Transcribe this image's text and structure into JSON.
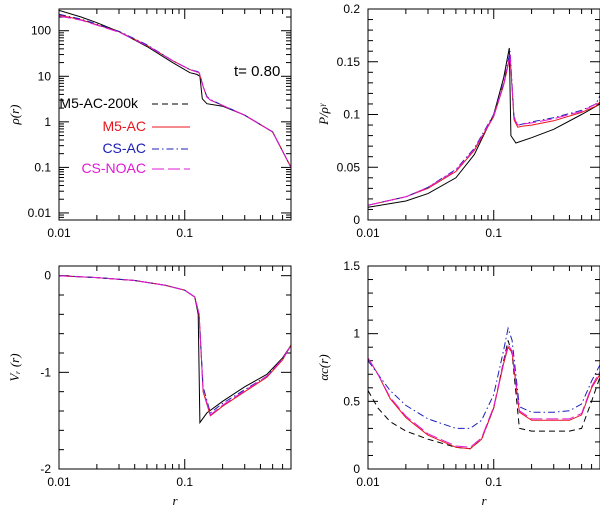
{
  "figure": {
    "annotation": "t=  0.80"
  },
  "colors": {
    "M5-AC-200k": "#000000",
    "M5-AC": "#e8141c",
    "CS-AC": "#1c20b8",
    "CS-NOAC": "#e01ad6"
  },
  "chart_data": [
    {
      "id": "rho",
      "type": "line",
      "xscale": "log",
      "yscale": "log",
      "xlim": [
        0.01,
        0.7
      ],
      "ylim": [
        0.007,
        300
      ],
      "xlabel": "",
      "ylabel": "ρ(r)",
      "xticks": [
        {
          "v": 0.01,
          "label": "0.01"
        },
        {
          "v": 0.1,
          "label": "0.1"
        }
      ],
      "yticks": [
        {
          "v": 0.01,
          "label": "0.01"
        },
        {
          "v": 0.1,
          "label": "0.1"
        },
        {
          "v": 1,
          "label": "1"
        },
        {
          "v": 10,
          "label": "10"
        },
        {
          "v": 100,
          "label": "100"
        }
      ],
      "legend_position": "left",
      "series": [
        {
          "name": "M5-AC-200k",
          "style": "solid",
          "x": [
            0.01,
            0.015,
            0.02,
            0.03,
            0.05,
            0.08,
            0.11,
            0.125,
            0.132,
            0.138,
            0.15,
            0.2,
            0.3,
            0.5,
            0.7
          ],
          "y": [
            280,
            200,
            150,
            95,
            45,
            20,
            12,
            11,
            10,
            3.2,
            2.5,
            2.2,
            1.4,
            0.6,
            0.1
          ]
        },
        {
          "name": "M5-AC",
          "style": "solid",
          "x": [
            0.01,
            0.015,
            0.02,
            0.03,
            0.05,
            0.08,
            0.11,
            0.13,
            0.14,
            0.15,
            0.16,
            0.2,
            0.3,
            0.5,
            0.7
          ],
          "y": [
            220,
            175,
            135,
            95,
            48,
            22,
            14,
            12,
            6,
            3.5,
            3,
            2.3,
            1.4,
            0.6,
            0.1
          ]
        },
        {
          "name": "CS-AC",
          "style": "dashdot",
          "x": [
            0.01,
            0.015,
            0.02,
            0.03,
            0.05,
            0.08,
            0.11,
            0.13,
            0.14,
            0.15,
            0.16,
            0.2,
            0.3,
            0.5,
            0.7
          ],
          "y": [
            230,
            180,
            140,
            97,
            49,
            22,
            14,
            12.5,
            6,
            3.6,
            3.1,
            2.3,
            1.4,
            0.6,
            0.1
          ]
        },
        {
          "name": "CS-NOAC",
          "style": "longdash",
          "x": [
            0.01,
            0.015,
            0.02,
            0.03,
            0.05,
            0.08,
            0.11,
            0.13,
            0.14,
            0.15,
            0.16,
            0.2,
            0.3,
            0.5,
            0.7
          ],
          "y": [
            210,
            170,
            132,
            93,
            47,
            22,
            14,
            12,
            6,
            3.5,
            3,
            2.3,
            1.4,
            0.6,
            0.1
          ]
        }
      ]
    },
    {
      "id": "pressure",
      "type": "line",
      "xscale": "log",
      "yscale": "linear",
      "xlim": [
        0.01,
        0.7
      ],
      "ylim": [
        0,
        0.2
      ],
      "xlabel": "",
      "ylabel": "P/ρ^γ",
      "xticks": [
        {
          "v": 0.01,
          "label": "0.01"
        },
        {
          "v": 0.1,
          "label": "0.1"
        }
      ],
      "yticks": [
        {
          "v": 0,
          "label": "0"
        },
        {
          "v": 0.05,
          "label": "0.05"
        },
        {
          "v": 0.1,
          "label": "0.1"
        },
        {
          "v": 0.15,
          "label": "0.15"
        },
        {
          "v": 0.2,
          "label": "0.2"
        }
      ],
      "series": [
        {
          "name": "M5-AC-200k",
          "style": "solid",
          "x": [
            0.01,
            0.02,
            0.03,
            0.05,
            0.07,
            0.1,
            0.12,
            0.133,
            0.137,
            0.15,
            0.2,
            0.3,
            0.5,
            0.7
          ],
          "y": [
            0.012,
            0.018,
            0.025,
            0.04,
            0.062,
            0.1,
            0.135,
            0.163,
            0.08,
            0.073,
            0.078,
            0.086,
            0.1,
            0.11
          ]
        },
        {
          "name": "M5-AC",
          "style": "solid",
          "x": [
            0.01,
            0.02,
            0.03,
            0.05,
            0.07,
            0.1,
            0.12,
            0.135,
            0.145,
            0.155,
            0.17,
            0.2,
            0.3,
            0.5,
            0.65,
            0.7
          ],
          "y": [
            0.014,
            0.022,
            0.03,
            0.046,
            0.066,
            0.098,
            0.128,
            0.155,
            0.095,
            0.088,
            0.089,
            0.09,
            0.094,
            0.102,
            0.108,
            0.112
          ]
        },
        {
          "name": "CS-AC",
          "style": "dashdot",
          "x": [
            0.01,
            0.02,
            0.03,
            0.05,
            0.07,
            0.1,
            0.12,
            0.135,
            0.145,
            0.155,
            0.17,
            0.2,
            0.3,
            0.5,
            0.65,
            0.7
          ],
          "y": [
            0.014,
            0.022,
            0.031,
            0.048,
            0.068,
            0.1,
            0.13,
            0.16,
            0.098,
            0.09,
            0.091,
            0.093,
            0.097,
            0.104,
            0.11,
            0.118
          ]
        },
        {
          "name": "CS-NOAC",
          "style": "longdash",
          "x": [
            0.01,
            0.02,
            0.03,
            0.05,
            0.07,
            0.1,
            0.12,
            0.135,
            0.145,
            0.155,
            0.17,
            0.2,
            0.3,
            0.5,
            0.65,
            0.7
          ],
          "y": [
            0.014,
            0.022,
            0.031,
            0.047,
            0.067,
            0.099,
            0.129,
            0.157,
            0.097,
            0.09,
            0.091,
            0.092,
            0.096,
            0.103,
            0.11,
            0.114
          ]
        }
      ]
    },
    {
      "id": "velocity",
      "type": "line",
      "xscale": "log",
      "yscale": "linear",
      "xlim": [
        0.01,
        0.7
      ],
      "ylim": [
        -2,
        0.1
      ],
      "xlabel": "r",
      "ylabel": "V_r (r)",
      "xticks": [
        {
          "v": 0.01,
          "label": "0.01"
        },
        {
          "v": 0.1,
          "label": "0.1"
        }
      ],
      "yticks": [
        {
          "v": -2,
          "label": "-2"
        },
        {
          "v": -1,
          "label": "-1"
        },
        {
          "v": 0,
          "label": "0"
        }
      ],
      "series": [
        {
          "name": "M5-AC-200k",
          "style": "solid",
          "x": [
            0.01,
            0.02,
            0.04,
            0.07,
            0.1,
            0.12,
            0.128,
            0.132,
            0.15,
            0.2,
            0.3,
            0.45,
            0.6,
            0.7
          ],
          "y": [
            0,
            -0.02,
            -0.05,
            -0.1,
            -0.15,
            -0.22,
            -0.4,
            -1.52,
            -1.42,
            -1.3,
            -1.15,
            -1.02,
            -0.85,
            -0.72
          ]
        },
        {
          "name": "M5-AC",
          "style": "solid",
          "x": [
            0.01,
            0.02,
            0.04,
            0.07,
            0.1,
            0.12,
            0.13,
            0.14,
            0.16,
            0.2,
            0.3,
            0.45,
            0.6,
            0.7
          ],
          "y": [
            0,
            -0.02,
            -0.05,
            -0.1,
            -0.15,
            -0.22,
            -0.4,
            -1.2,
            -1.45,
            -1.35,
            -1.2,
            -1.05,
            -0.87,
            -0.72
          ]
        },
        {
          "name": "CS-AC",
          "style": "dashdot",
          "x": [
            0.01,
            0.02,
            0.04,
            0.07,
            0.1,
            0.12,
            0.13,
            0.14,
            0.16,
            0.2,
            0.3,
            0.45,
            0.6,
            0.7
          ],
          "y": [
            0,
            -0.02,
            -0.05,
            -0.1,
            -0.15,
            -0.22,
            -0.4,
            -1.15,
            -1.42,
            -1.32,
            -1.18,
            -1.04,
            -0.86,
            -0.72
          ]
        },
        {
          "name": "CS-NOAC",
          "style": "longdash",
          "x": [
            0.01,
            0.02,
            0.04,
            0.07,
            0.1,
            0.12,
            0.13,
            0.14,
            0.16,
            0.2,
            0.3,
            0.45,
            0.6,
            0.7
          ],
          "y": [
            0,
            -0.02,
            -0.05,
            -0.1,
            -0.15,
            -0.22,
            -0.4,
            -1.18,
            -1.44,
            -1.34,
            -1.19,
            -1.04,
            -0.86,
            -0.72
          ]
        }
      ]
    },
    {
      "id": "alpha",
      "type": "line",
      "xscale": "log",
      "yscale": "linear",
      "xlim": [
        0.01,
        0.7
      ],
      "ylim": [
        0,
        1.5
      ],
      "xlabel": "r",
      "ylabel": "α_c(r)",
      "xticks": [
        {
          "v": 0.01,
          "label": "0.01"
        },
        {
          "v": 0.1,
          "label": "0.1"
        }
      ],
      "yticks": [
        {
          "v": 0,
          "label": "0"
        },
        {
          "v": 0.5,
          "label": "0.5"
        },
        {
          "v": 1,
          "label": "1"
        },
        {
          "v": 1.5,
          "label": "1.5"
        }
      ],
      "series": [
        {
          "name": "M5-AC-200k",
          "style": "dashed",
          "x": [
            0.01,
            0.012,
            0.015,
            0.02,
            0.03,
            0.05,
            0.065,
            0.08,
            0.1,
            0.12,
            0.13,
            0.14,
            0.16,
            0.2,
            0.3,
            0.4,
            0.5,
            0.6,
            0.7
          ],
          "y": [
            0.58,
            0.45,
            0.35,
            0.28,
            0.22,
            0.16,
            0.15,
            0.22,
            0.45,
            0.8,
            0.95,
            0.85,
            0.3,
            0.28,
            0.28,
            0.28,
            0.3,
            0.5,
            0.68
          ]
        },
        {
          "name": "M5-AC",
          "style": "solid",
          "x": [
            0.01,
            0.012,
            0.015,
            0.02,
            0.03,
            0.05,
            0.065,
            0.08,
            0.1,
            0.12,
            0.13,
            0.14,
            0.16,
            0.2,
            0.3,
            0.4,
            0.5,
            0.6,
            0.7
          ],
          "y": [
            0.82,
            0.7,
            0.52,
            0.38,
            0.25,
            0.16,
            0.15,
            0.22,
            0.45,
            0.78,
            0.9,
            0.86,
            0.42,
            0.36,
            0.36,
            0.36,
            0.4,
            0.6,
            0.7
          ]
        },
        {
          "name": "CS-AC",
          "style": "dashdot",
          "x": [
            0.01,
            0.012,
            0.015,
            0.02,
            0.03,
            0.05,
            0.065,
            0.08,
            0.1,
            0.12,
            0.13,
            0.14,
            0.16,
            0.2,
            0.3,
            0.4,
            0.5,
            0.6,
            0.7
          ],
          "y": [
            0.8,
            0.7,
            0.58,
            0.47,
            0.37,
            0.3,
            0.3,
            0.36,
            0.55,
            0.88,
            1.04,
            0.95,
            0.46,
            0.42,
            0.42,
            0.43,
            0.48,
            0.65,
            0.77
          ]
        },
        {
          "name": "CS-NOAC",
          "style": "longdash",
          "x": [
            0.01,
            0.012,
            0.015,
            0.02,
            0.03,
            0.05,
            0.065,
            0.08,
            0.1,
            0.12,
            0.13,
            0.14,
            0.16,
            0.2,
            0.3,
            0.4,
            0.5,
            0.6,
            0.7
          ],
          "y": [
            0.82,
            0.7,
            0.53,
            0.39,
            0.26,
            0.17,
            0.16,
            0.23,
            0.46,
            0.79,
            0.92,
            0.87,
            0.43,
            0.37,
            0.37,
            0.37,
            0.41,
            0.61,
            0.72
          ]
        }
      ]
    }
  ]
}
